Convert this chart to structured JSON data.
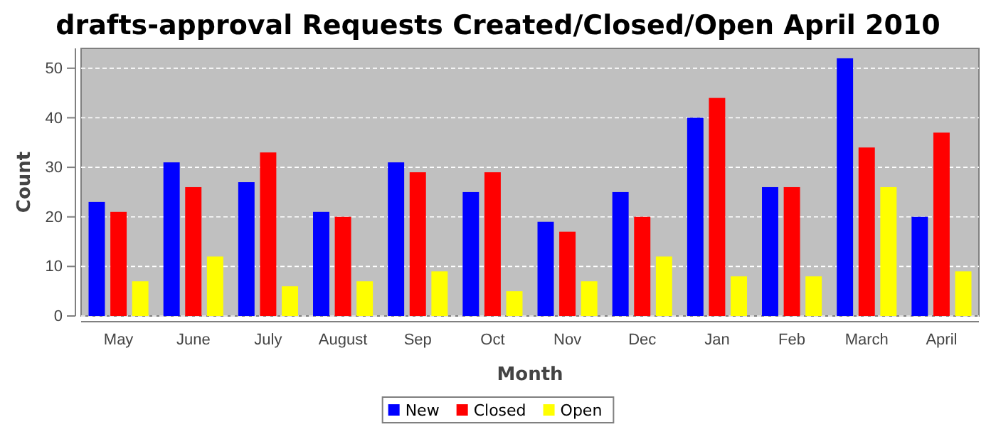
{
  "chart_data": {
    "type": "bar",
    "title": "drafts-approval Requests Created/Closed/Open April 2010",
    "xlabel": "Month",
    "ylabel": "Count",
    "categories": [
      "May",
      "June",
      "July",
      "August",
      "Sep",
      "Oct",
      "Nov",
      "Dec",
      "Jan",
      "Feb",
      "March",
      "April"
    ],
    "series": [
      {
        "name": "New",
        "color": "#0000ff",
        "values": [
          23,
          31,
          27,
          21,
          31,
          25,
          19,
          25,
          40,
          26,
          52,
          20
        ]
      },
      {
        "name": "Closed",
        "color": "#ff0000",
        "values": [
          21,
          26,
          33,
          20,
          29,
          29,
          17,
          20,
          44,
          26,
          34,
          37
        ]
      },
      {
        "name": "Open",
        "color": "#ffff00",
        "values": [
          7,
          12,
          6,
          7,
          9,
          5,
          7,
          12,
          8,
          8,
          26,
          9
        ]
      }
    ],
    "ylim": [
      0,
      54
    ],
    "yticks": [
      0,
      10,
      20,
      30,
      40,
      50
    ],
    "grid": "y",
    "legend": "bottom"
  }
}
